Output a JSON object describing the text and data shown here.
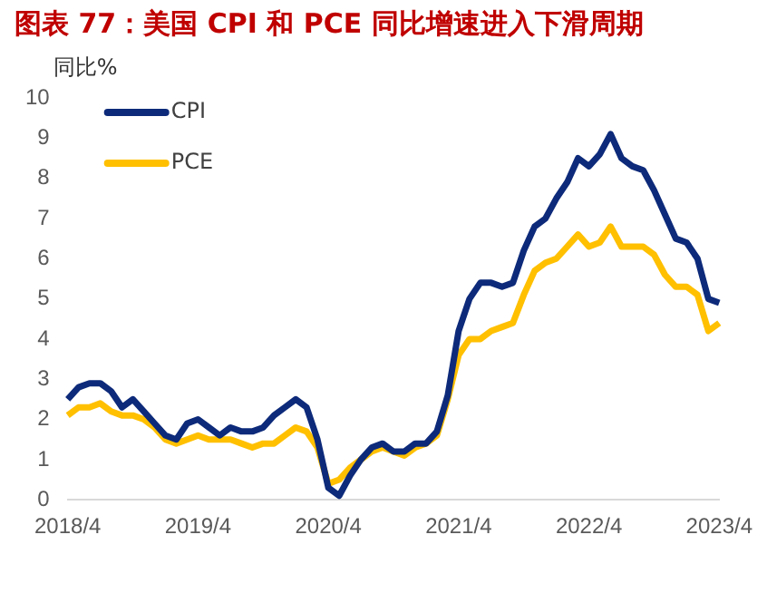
{
  "chart_data": {
    "type": "line",
    "title": "图表 77：美国 CPI 和 PCE 同比增速进入下滑周期",
    "ylabel": "同比%",
    "categories": [
      "2018/4",
      null,
      null,
      null,
      null,
      null,
      null,
      null,
      null,
      null,
      null,
      null,
      "2019/4",
      null,
      null,
      null,
      null,
      null,
      null,
      null,
      null,
      null,
      null,
      null,
      "2020/4",
      null,
      null,
      null,
      null,
      null,
      null,
      null,
      null,
      null,
      null,
      null,
      "2021/4",
      null,
      null,
      null,
      null,
      null,
      null,
      null,
      null,
      null,
      null,
      null,
      "2022/4",
      null,
      null,
      null,
      null,
      null,
      null,
      null,
      null,
      null,
      null,
      null,
      "2023/4"
    ],
    "series": [
      {
        "name": "CPI",
        "color": "#0d2a7a",
        "values": [
          2.5,
          2.8,
          2.9,
          2.9,
          2.7,
          2.3,
          2.5,
          2.2,
          1.9,
          1.6,
          1.5,
          1.9,
          2.0,
          1.8,
          1.6,
          1.8,
          1.7,
          1.7,
          1.8,
          2.1,
          2.3,
          2.5,
          2.3,
          1.5,
          0.3,
          0.1,
          0.6,
          1.0,
          1.3,
          1.4,
          1.2,
          1.2,
          1.4,
          1.4,
          1.7,
          2.6,
          4.2,
          5.0,
          5.4,
          5.4,
          5.3,
          5.4,
          6.2,
          6.8,
          7.0,
          7.5,
          7.9,
          8.5,
          8.3,
          8.6,
          9.1,
          8.5,
          8.3,
          8.2,
          7.7,
          7.1,
          6.5,
          6.4,
          6.0,
          5.0,
          4.9
        ]
      },
      {
        "name": "PCE",
        "color": "#ffc000",
        "values": [
          2.1,
          2.3,
          2.3,
          2.4,
          2.2,
          2.1,
          2.1,
          2.0,
          1.8,
          1.5,
          1.4,
          1.5,
          1.6,
          1.5,
          1.5,
          1.5,
          1.4,
          1.3,
          1.4,
          1.4,
          1.6,
          1.8,
          1.7,
          1.3,
          0.4,
          0.5,
          0.8,
          1.0,
          1.2,
          1.3,
          1.2,
          1.1,
          1.3,
          1.4,
          1.6,
          2.5,
          3.6,
          4.0,
          4.0,
          4.2,
          4.3,
          4.4,
          5.1,
          5.7,
          5.9,
          6.0,
          6.3,
          6.6,
          6.3,
          6.4,
          6.8,
          6.3,
          6.3,
          6.3,
          6.1,
          5.6,
          5.3,
          5.3,
          5.1,
          4.2,
          4.4
        ]
      }
    ],
    "ylim": [
      0,
      10
    ],
    "yticks": [
      0,
      1,
      2,
      3,
      4,
      5,
      6,
      7,
      8,
      9,
      10
    ],
    "grid": false,
    "legend": "top left",
    "marker": "none",
    "line_style": "solid"
  }
}
